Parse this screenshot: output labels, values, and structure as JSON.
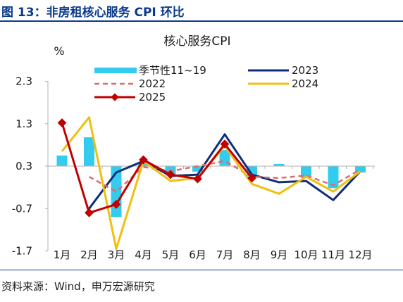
{
  "figure_title": "图 13：非房租核心服务 CPI 环比",
  "source_text": "资料来源：Wind，申万宏源研究",
  "chart_data": {
    "type": "bar+line",
    "title": "核心服务CPI",
    "ylabel": "%",
    "ylim": [
      -1.7,
      2.3
    ],
    "yticks": [
      "2.3",
      "1.3",
      "0.3",
      "-0.7",
      "-1.7"
    ],
    "ytick_values": [
      2.3,
      1.3,
      0.3,
      -0.7,
      -1.7
    ],
    "categories": [
      "1月",
      "2月",
      "3月",
      "4月",
      "5月",
      "6月",
      "7月",
      "8月",
      "9月",
      "10月",
      "11月",
      "12月"
    ],
    "legend_position": "top",
    "bar_series": {
      "name": "季节性11~19",
      "color": "#33ccee",
      "values": [
        0.55,
        0.98,
        -0.9,
        0.38,
        0.08,
        0.17,
        0.68,
        0.06,
        0.35,
        0.02,
        -0.22,
        0.15
      ]
    },
    "series": [
      {
        "name": "2023",
        "color": "#0f2d7a",
        "style": "solid",
        "values": [
          null,
          -0.7,
          0.15,
          0.42,
          0.07,
          0.1,
          1.05,
          0.1,
          -0.08,
          -0.05,
          -0.5,
          0.18
        ]
      },
      {
        "name": "2022",
        "color": "#e06a6a",
        "style": "dashed",
        "values": [
          null,
          0.05,
          -0.3,
          0.28,
          0.18,
          0.3,
          0.42,
          0.05,
          0.02,
          0.08,
          -0.15,
          0.22
        ]
      },
      {
        "name": "2024",
        "color": "#f0c010",
        "style": "solid",
        "values": [
          0.65,
          1.45,
          -1.65,
          0.42,
          -0.05,
          0.02,
          0.78,
          -0.12,
          -0.35,
          0.05,
          -0.3,
          0.18
        ]
      },
      {
        "name": "2025",
        "color": "#c00000",
        "style": "solid-diamond",
        "values": [
          1.32,
          -0.8,
          -0.6,
          0.45,
          0.1,
          0.0,
          0.82,
          0.02,
          null,
          null,
          null,
          null
        ]
      }
    ]
  }
}
